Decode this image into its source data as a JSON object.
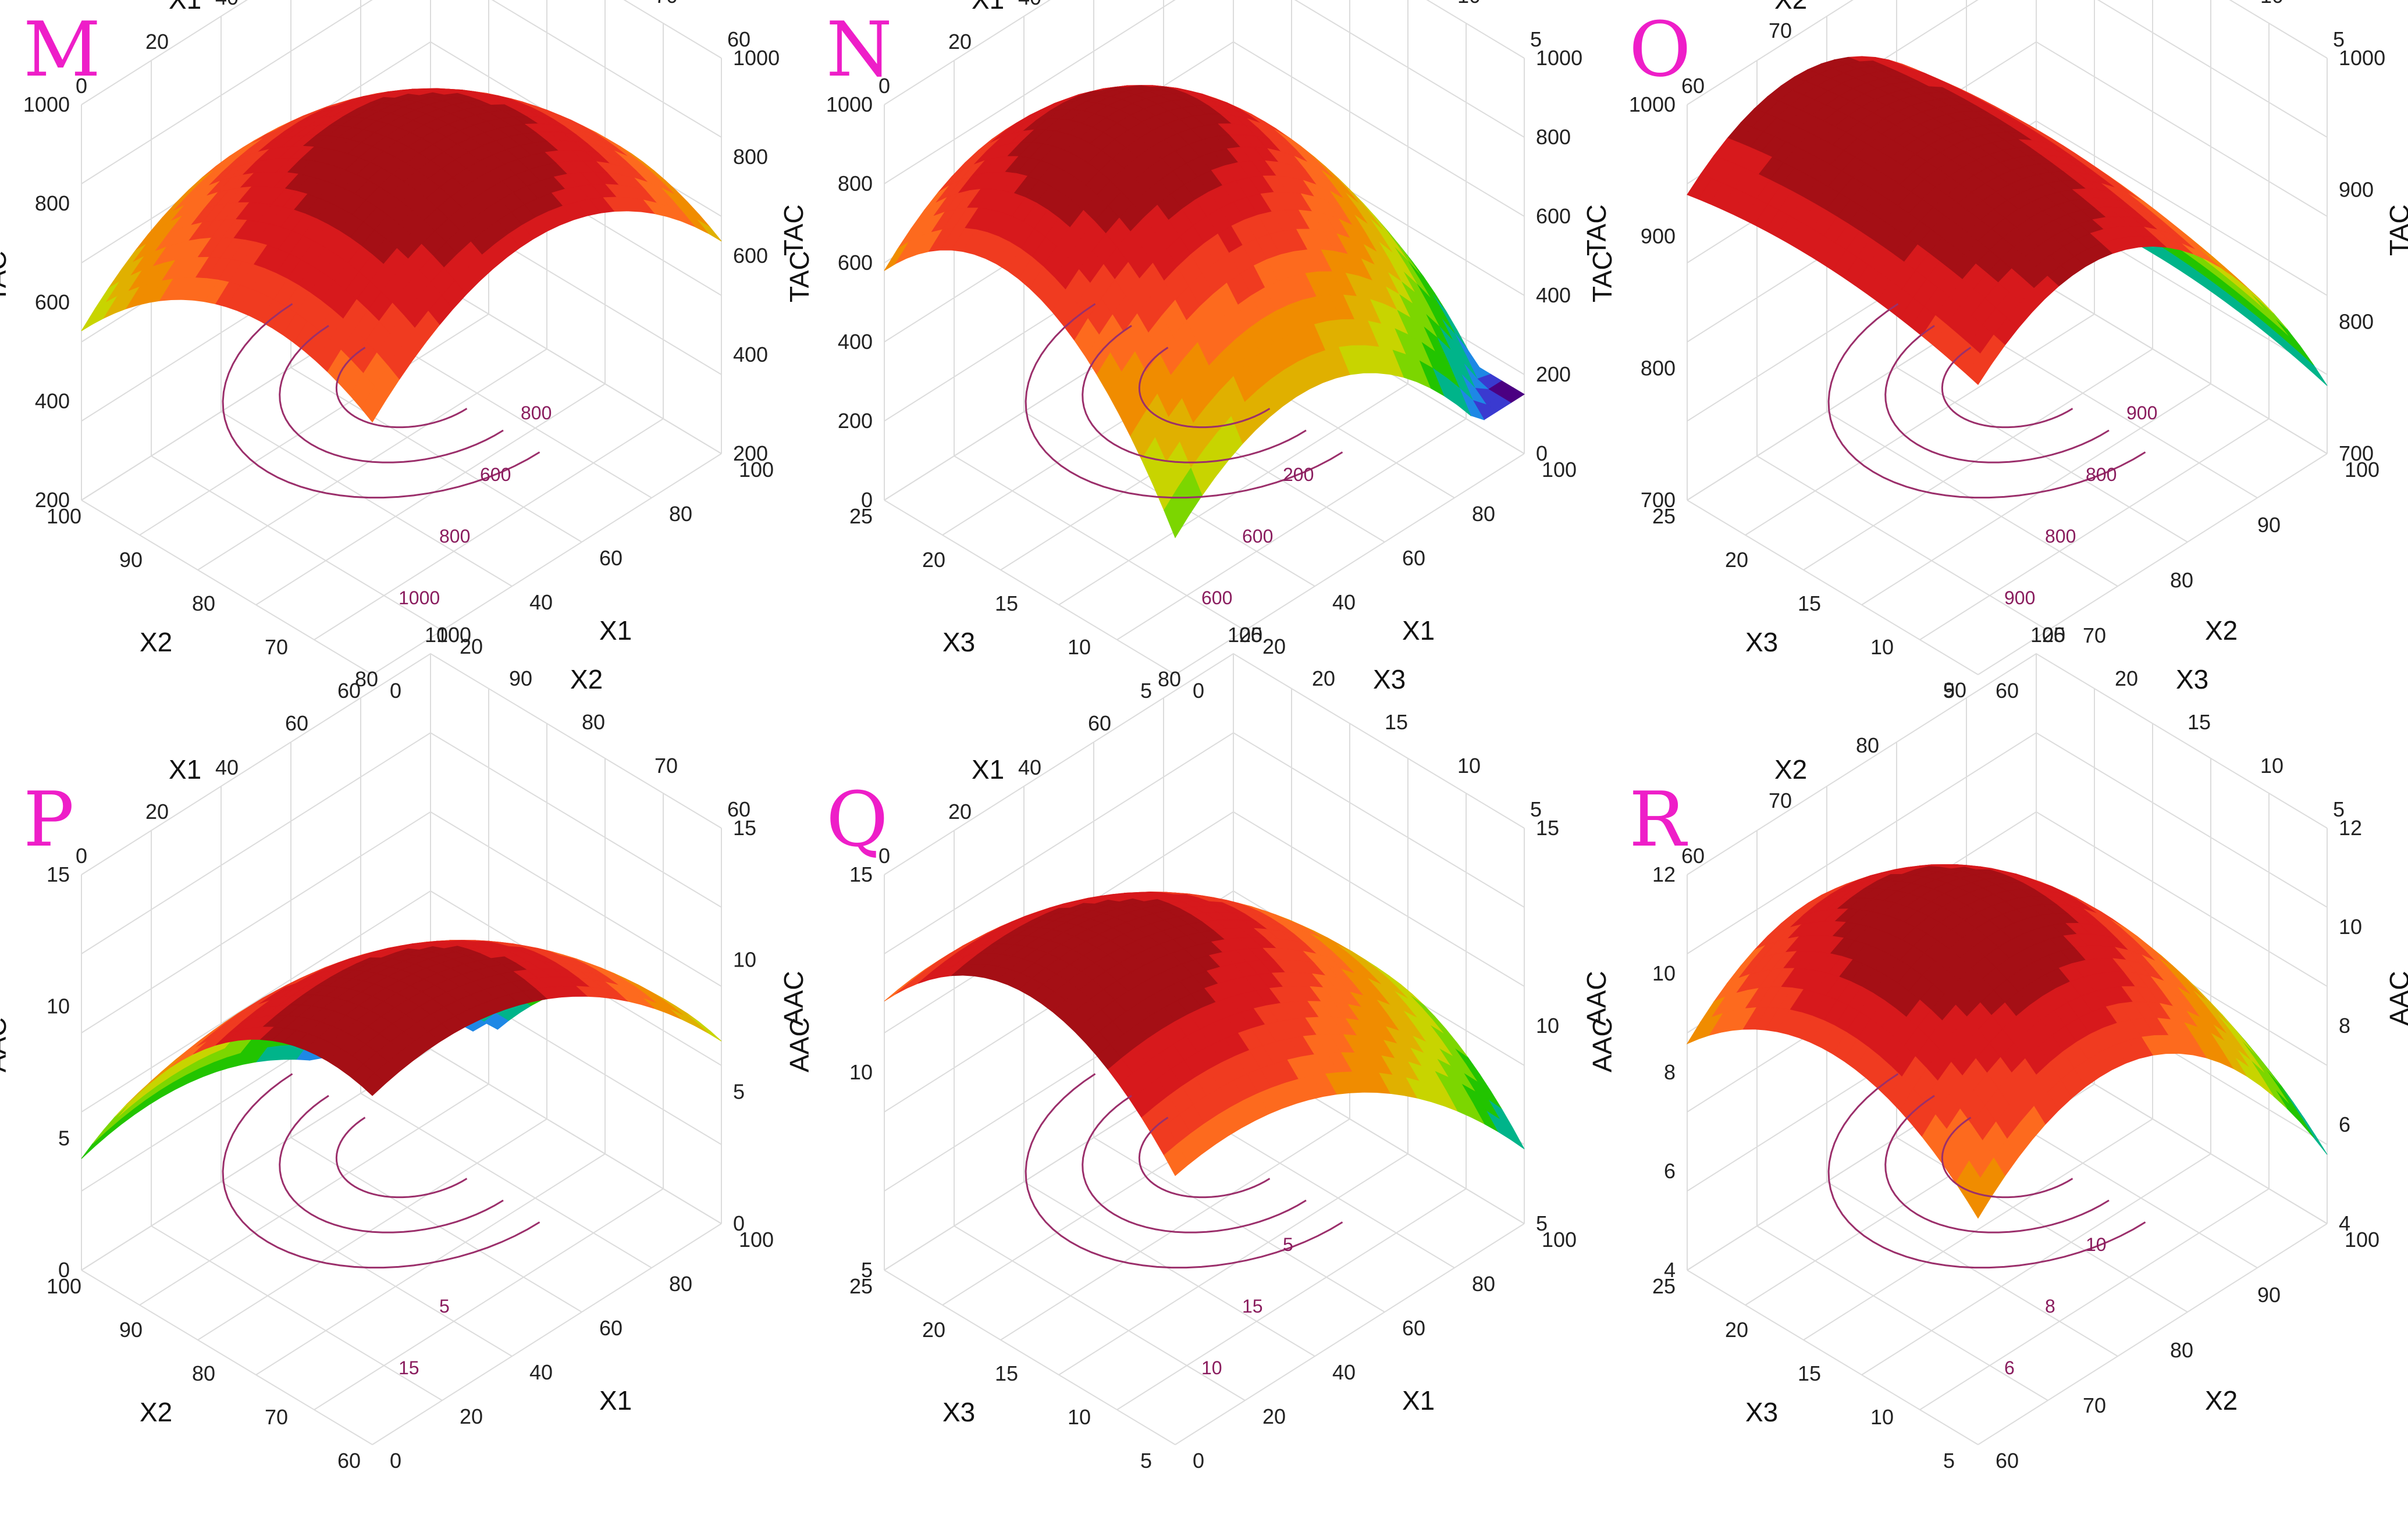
{
  "figure": {
    "type": "response-surface-grid"
  },
  "chart_data": [
    {
      "type": "surface",
      "panel": "M",
      "x": {
        "label": "X1",
        "range": [
          0,
          100
        ],
        "ticks": [
          "0",
          "20",
          "40",
          "60",
          "80",
          "100"
        ]
      },
      "y": {
        "label": "X2",
        "range": [
          60,
          100
        ],
        "ticks": [
          "60",
          "70",
          "80",
          "90",
          "100"
        ]
      },
      "z": {
        "label": "TAC",
        "range": [
          200,
          1000
        ],
        "ticks": [
          "200",
          "400",
          "600",
          "800",
          "1000"
        ]
      },
      "z_peak": 1000,
      "contour_labels": [
        "1000",
        "800",
        "600",
        "800"
      ]
    },
    {
      "type": "surface",
      "panel": "N",
      "x": {
        "label": "X1",
        "range": [
          0,
          100
        ],
        "ticks": [
          "0",
          "20",
          "40",
          "60",
          "80",
          "100"
        ]
      },
      "y": {
        "label": "X3",
        "range": [
          5,
          25
        ],
        "ticks": [
          "5",
          "10",
          "15",
          "20",
          "25"
        ]
      },
      "z": {
        "label": "TAC",
        "range": [
          0,
          1000
        ],
        "ticks": [
          "0",
          "200",
          "400",
          "600",
          "800",
          "1000"
        ]
      },
      "z_peak": 950,
      "contour_labels": [
        "600",
        "600",
        "200"
      ]
    },
    {
      "type": "surface",
      "panel": "O",
      "x": {
        "label": "X2",
        "range": [
          60,
          100
        ],
        "ticks": [
          "60",
          "70",
          "80",
          "90",
          "100"
        ]
      },
      "y": {
        "label": "X3",
        "range": [
          5,
          25
        ],
        "ticks": [
          "5",
          "10",
          "15",
          "20",
          "25"
        ]
      },
      "z": {
        "label": "TAC",
        "range": [
          700,
          1000
        ],
        "ticks": [
          "700",
          "800",
          "900",
          "1000"
        ]
      },
      "z_peak": 960,
      "contour_labels": [
        "900",
        "800",
        "800",
        "900"
      ]
    },
    {
      "type": "surface",
      "panel": "P",
      "x": {
        "label": "X1",
        "range": [
          0,
          100
        ],
        "ticks": [
          "0",
          "20",
          "40",
          "60",
          "80",
          "100"
        ]
      },
      "y": {
        "label": "X2",
        "range": [
          60,
          100
        ],
        "ticks": [
          "60",
          "70",
          "80",
          "90",
          "100"
        ]
      },
      "z": {
        "label": "AAC",
        "range": [
          0,
          15
        ],
        "ticks": [
          "0",
          "5",
          "10",
          "15"
        ]
      },
      "z_peak": 14.5,
      "contour_labels": [
        "15",
        "5"
      ]
    },
    {
      "type": "surface",
      "panel": "Q",
      "x": {
        "label": "X1",
        "range": [
          0,
          100
        ],
        "ticks": [
          "0",
          "20",
          "40",
          "60",
          "80",
          "100"
        ]
      },
      "y": {
        "label": "X3",
        "range": [
          5,
          25
        ],
        "ticks": [
          "5",
          "10",
          "15",
          "20",
          "25"
        ]
      },
      "z": {
        "label": "AAC",
        "range": [
          5,
          15
        ],
        "ticks": [
          "5",
          "10",
          "15"
        ]
      },
      "z_peak": 12,
      "contour_labels": [
        "10",
        "15",
        "5"
      ]
    },
    {
      "type": "surface",
      "panel": "R",
      "x": {
        "label": "X2",
        "range": [
          60,
          100
        ],
        "ticks": [
          "60",
          "70",
          "80",
          "90",
          "100"
        ]
      },
      "y": {
        "label": "X3",
        "range": [
          5,
          25
        ],
        "ticks": [
          "5",
          "10",
          "15",
          "20",
          "25"
        ]
      },
      "z": {
        "label": "AAC",
        "range": [
          4,
          12
        ],
        "ticks": [
          "4",
          "6",
          "8",
          "10",
          "12"
        ]
      },
      "z_peak": 12.5,
      "contour_labels": [
        "6",
        "8",
        "10"
      ]
    }
  ],
  "colors": {
    "peak": "#a50f15",
    "ramp": [
      "#a50f15",
      "#d7191c",
      "#f03b20",
      "#fd6a1e",
      "#f08c00",
      "#e0b000",
      "#c8d400",
      "#7cd600",
      "#22c400",
      "#00b48a",
      "#1e88e5",
      "#3a3ad0",
      "#4b0082"
    ],
    "grid": "#dcdcdc",
    "contour": "#9b2f6b",
    "panel_letter": "#ee1ec8"
  }
}
